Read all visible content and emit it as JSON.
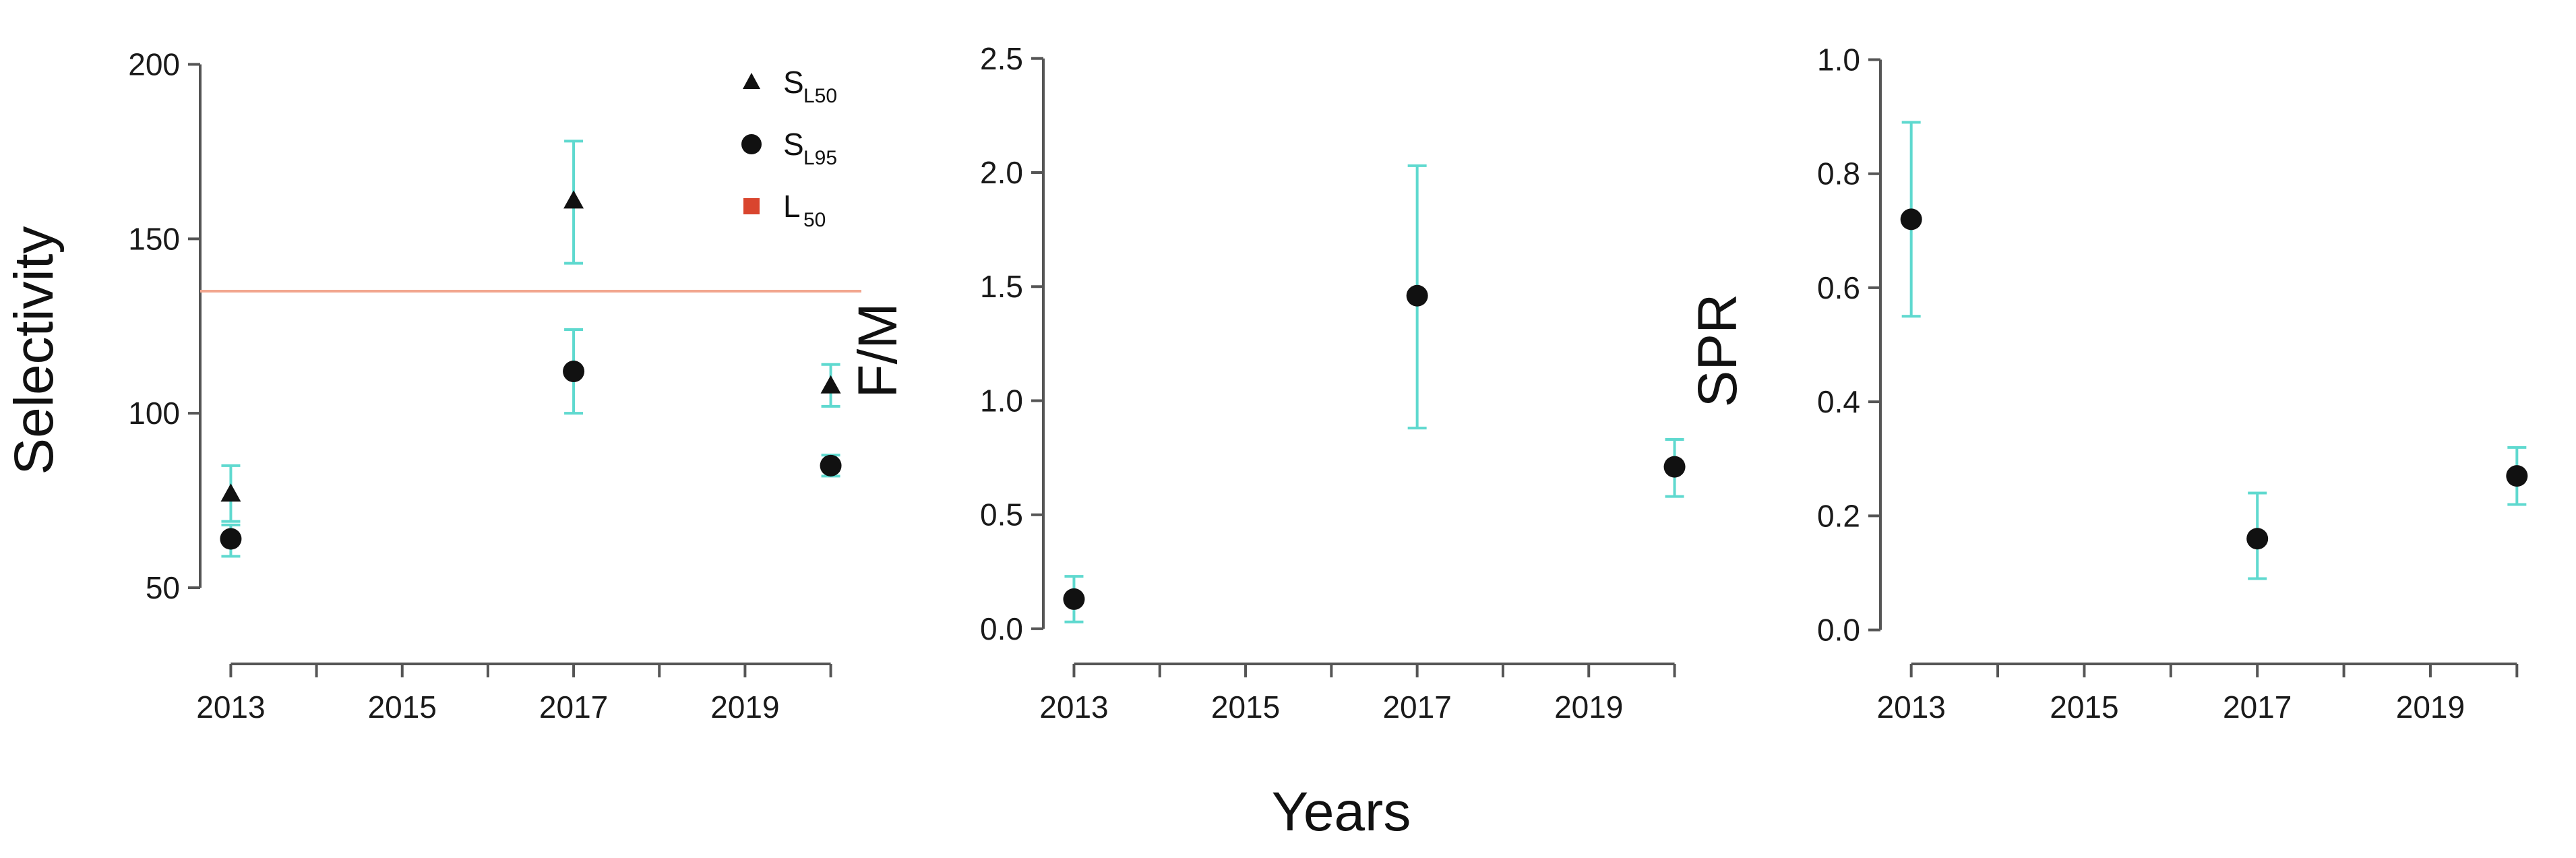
{
  "figure": {
    "shared_xlabel": "Years",
    "colors": {
      "errorbar": "#5fd9cf",
      "point": "#111111",
      "reference_line": "#f2a68f",
      "legend_square": "#d9452e",
      "axis": "#555555"
    }
  },
  "chart_data": [
    {
      "type": "scatter",
      "ylabel": "Selectivity",
      "xlim": [
        2012.8,
        2020.2
      ],
      "ylim": [
        33,
        203
      ],
      "xticks": [
        2013,
        2014,
        2015,
        2016,
        2017,
        2018,
        2019,
        2020
      ],
      "xtick_labels": [
        "2013",
        "",
        "2015",
        "",
        "2017",
        "",
        "2019",
        ""
      ],
      "yticks": [
        50,
        100,
        150,
        200
      ],
      "ytick_labels": [
        "50",
        "100",
        "150",
        "200"
      ],
      "reference_line": {
        "name": "L50",
        "y": 135
      },
      "legend": {
        "position": "top-right",
        "entries": [
          {
            "marker": "triangle",
            "main": "S",
            "sub": "L50"
          },
          {
            "marker": "circle",
            "main": "S",
            "sub": "L95"
          },
          {
            "marker": "square",
            "main": "L",
            "sub": "50"
          }
        ]
      },
      "series": [
        {
          "name": "SL50",
          "marker": "triangle",
          "points": [
            {
              "x": 2013,
              "y": 77,
              "lo": 69,
              "hi": 85
            },
            {
              "x": 2017,
              "y": 161,
              "lo": 143,
              "hi": 178
            },
            {
              "x": 2020,
              "y": 108,
              "lo": 102,
              "hi": 114
            }
          ]
        },
        {
          "name": "SL95",
          "marker": "circle",
          "points": [
            {
              "x": 2013,
              "y": 64,
              "lo": 59,
              "hi": 68
            },
            {
              "x": 2017,
              "y": 112,
              "lo": 100,
              "hi": 124
            },
            {
              "x": 2020,
              "y": 85,
              "lo": 82,
              "hi": 88
            }
          ]
        }
      ]
    },
    {
      "type": "scatter",
      "ylabel": "F/M",
      "xlim": [
        2012.8,
        2020.2
      ],
      "ylim": [
        -0.08,
        2.52
      ],
      "xticks": [
        2013,
        2014,
        2015,
        2016,
        2017,
        2018,
        2019,
        2020
      ],
      "xtick_labels": [
        "2013",
        "",
        "2015",
        "",
        "2017",
        "",
        "2019",
        ""
      ],
      "yticks": [
        0.0,
        0.5,
        1.0,
        1.5,
        2.0,
        2.5
      ],
      "ytick_labels": [
        "0.0",
        "0.5",
        "1.0",
        "1.5",
        "2.0",
        "2.5"
      ],
      "series": [
        {
          "marker": "circle",
          "points": [
            {
              "x": 2013,
              "y": 0.13,
              "lo": 0.03,
              "hi": 0.23
            },
            {
              "x": 2017,
              "y": 1.46,
              "lo": 0.88,
              "hi": 2.03
            },
            {
              "x": 2020,
              "y": 0.71,
              "lo": 0.58,
              "hi": 0.83
            }
          ]
        }
      ]
    },
    {
      "type": "scatter",
      "ylabel": "SPR",
      "xlim": [
        2012.8,
        2020.2
      ],
      "ylim": [
        -0.03,
        1.01
      ],
      "xticks": [
        2013,
        2014,
        2015,
        2016,
        2017,
        2018,
        2019,
        2020
      ],
      "xtick_labels": [
        "2013",
        "",
        "2015",
        "",
        "2017",
        "",
        "2019",
        ""
      ],
      "yticks": [
        0.0,
        0.2,
        0.4,
        0.6,
        0.8,
        1.0
      ],
      "ytick_labels": [
        "0.0",
        "0.2",
        "0.4",
        "0.6",
        "0.8",
        "1.0"
      ],
      "series": [
        {
          "marker": "circle",
          "points": [
            {
              "x": 2013,
              "y": 0.72,
              "lo": 0.55,
              "hi": 0.89
            },
            {
              "x": 2017,
              "y": 0.16,
              "lo": 0.09,
              "hi": 0.24
            },
            {
              "x": 2020,
              "y": 0.27,
              "lo": 0.22,
              "hi": 0.32
            }
          ]
        }
      ]
    }
  ]
}
